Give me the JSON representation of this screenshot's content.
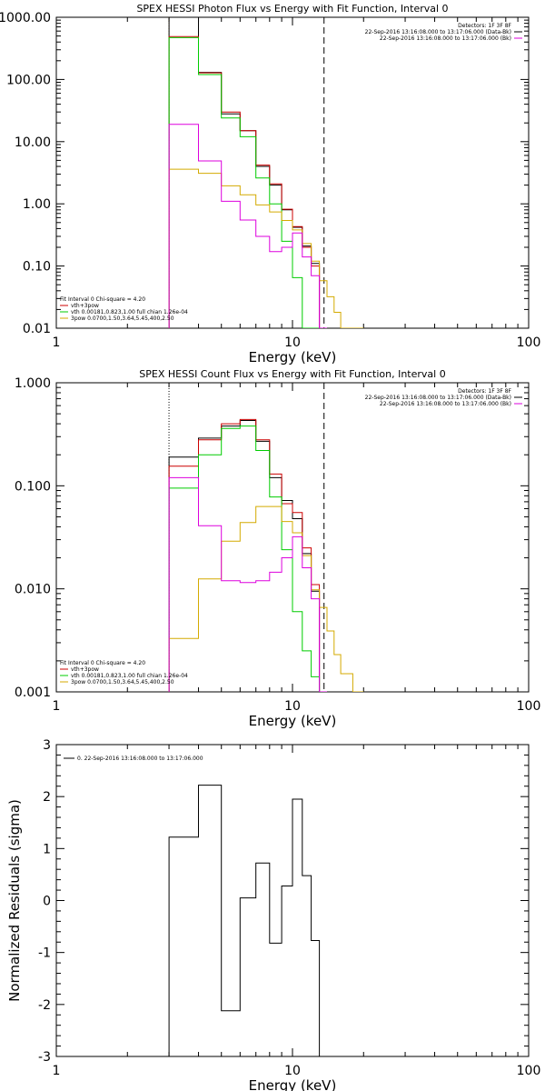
{
  "chart_data": [
    {
      "type": "line",
      "title": "SPEX HESSI Photon Flux vs Energy with Fit Function, Interval 0",
      "xlabel": "Energy (keV)",
      "ylabel": "",
      "xscale": "log",
      "yscale": "log",
      "xlim": [
        1,
        100
      ],
      "ylim": [
        0.01,
        1000
      ],
      "x_ticks": [
        1,
        10,
        100
      ],
      "x_tick_labels": [
        "1",
        "10",
        "100"
      ],
      "y_ticks": [
        0.01,
        0.1,
        1,
        10,
        100,
        1000
      ],
      "y_tick_labels": [
        "0.01",
        "0.10",
        "1.00",
        "10.00",
        "100.00",
        "1000.00"
      ],
      "grid": false,
      "legend_top_right": [
        "Detectors: 1F 3F 8F",
        "22-Sep-2016 13:16:08.000 to 13:17:06.000 (Data-Bk)",
        "22-Sep-2016 13:16:08.000 to 13:17:06.000 (Bk)"
      ],
      "legend_top_right_colors": [
        "#000000",
        "#000000",
        "#dd00dd"
      ],
      "legend_bottom_left": [
        "Fit Interval 0   Chi-square = 4.20",
        "vth+3pow",
        "vth 0.00181,0.823,1.00  full chian 1.26e-04",
        "3pow 0.0700,1.50,3.64,5.45,400,2.50"
      ],
      "legend_bottom_left_colors": [
        "#000000",
        "#cc0000",
        "#00cc00",
        "#d4aa00"
      ],
      "vertical_lines": [
        {
          "x": 3.0,
          "style": "dotted",
          "color": "#d4aa00"
        },
        {
          "x": 13.6,
          "style": "dashed",
          "color": "#000000"
        }
      ],
      "edges": [
        3.0,
        4.0,
        5.0,
        6.0,
        7.0,
        8.0,
        9.0,
        10.0,
        11.0,
        12.0,
        13.0,
        14.0,
        15.0,
        16.0,
        18.0,
        20.0
      ],
      "series": [
        {
          "name": "Data-Bk",
          "color": "#000000",
          "values": [
            1000,
            130,
            28,
            15,
            4.0,
            2.0,
            0.8,
            0.42,
            0.21,
            0.11,
            null,
            null,
            null,
            null,
            null
          ]
        },
        {
          "name": "vth+3pow",
          "color": "#cc0000",
          "values": [
            490,
            128,
            30,
            15,
            4.2,
            2.1,
            0.82,
            0.43,
            0.2,
            0.1,
            null,
            null,
            null,
            null,
            null
          ]
        },
        {
          "name": "vth",
          "color": "#00cc00",
          "values": [
            470,
            120,
            24,
            12,
            2.6,
            1.0,
            0.25,
            0.065,
            0.01,
            0.001,
            null,
            null,
            null,
            null,
            null
          ]
        },
        {
          "name": "3pow",
          "color": "#d4aa00",
          "values": [
            3.6,
            3.1,
            1.95,
            1.4,
            0.96,
            0.74,
            0.54,
            0.38,
            0.23,
            0.12,
            0.058,
            0.032,
            0.018,
            0.01,
            0.0
          ]
        },
        {
          "name": "Bk",
          "color": "#dd00dd",
          "values": [
            19,
            4.9,
            1.1,
            0.55,
            0.3,
            0.17,
            0.2,
            0.34,
            0.14,
            0.07,
            0.001,
            null,
            null,
            null,
            null
          ]
        }
      ]
    },
    {
      "type": "line",
      "title": "SPEX HESSI Count Flux vs Energy with Fit Function, Interval 0",
      "xlabel": "Energy (keV)",
      "ylabel": "",
      "xscale": "log",
      "yscale": "log",
      "xlim": [
        1,
        100
      ],
      "ylim": [
        0.001,
        1
      ],
      "x_ticks": [
        1,
        10,
        100
      ],
      "x_tick_labels": [
        "1",
        "10",
        "100"
      ],
      "y_ticks": [
        0.001,
        0.01,
        0.1,
        1
      ],
      "y_tick_labels": [
        "0.001",
        "0.010",
        "0.100",
        "1.000"
      ],
      "grid": false,
      "legend_top_right": [
        "Detectors: 1F 3F 8F",
        "22-Sep-2016 13:16:08.000 to 13:17:06.000 (Data-Bk)",
        "22-Sep-2016 13:16:08.000 to 13:17:06.000 (Bk)"
      ],
      "legend_top_right_colors": [
        "#000000",
        "#000000",
        "#dd00dd"
      ],
      "legend_bottom_left": [
        "Fit Interval 0   Chi-square = 4.20",
        "vth+3pow",
        "vth 0.00181,0.823,1.00  full chian 1.26e-04",
        "3pow 0.0700,1.50,3.64,5.45,400,2.50"
      ],
      "legend_bottom_left_colors": [
        "#000000",
        "#cc0000",
        "#00cc00",
        "#d4aa00"
      ],
      "vertical_lines": [
        {
          "x": 3.0,
          "style": "dotted",
          "color": "#000000"
        },
        {
          "x": 13.6,
          "style": "dashed",
          "color": "#000000"
        }
      ],
      "edges": [
        3.0,
        4.0,
        5.0,
        6.0,
        7.0,
        8.0,
        9.0,
        10.0,
        11.0,
        12.0,
        13.0,
        14.0,
        15.0,
        16.0,
        18.0,
        20.0
      ],
      "series": [
        {
          "name": "Data-Bk",
          "color": "#000000",
          "values": [
            0.19,
            0.29,
            0.38,
            0.43,
            0.27,
            0.12,
            0.072,
            0.048,
            0.022,
            0.0095,
            null,
            null,
            null,
            null,
            null
          ]
        },
        {
          "name": "vth+3pow",
          "color": "#cc0000",
          "values": [
            0.155,
            0.28,
            0.4,
            0.44,
            0.28,
            0.13,
            0.067,
            0.055,
            0.025,
            0.011,
            null,
            null,
            null,
            null,
            null
          ]
        },
        {
          "name": "vth",
          "color": "#00cc00",
          "values": [
            0.095,
            0.2,
            0.36,
            0.38,
            0.22,
            0.078,
            0.024,
            0.006,
            0.0025,
            0.0014,
            null,
            null,
            null,
            null,
            null
          ]
        },
        {
          "name": "3pow",
          "color": "#d4aa00",
          "values": [
            0.0033,
            0.0125,
            0.029,
            0.044,
            0.063,
            0.063,
            0.045,
            0.035,
            0.021,
            0.0098,
            0.0066,
            0.0039,
            0.0023,
            0.0015,
            0.001
          ]
        },
        {
          "name": "Bk",
          "color": "#dd00dd",
          "values": [
            0.12,
            0.041,
            0.012,
            0.0115,
            0.012,
            0.0145,
            0.02,
            0.032,
            0.016,
            0.008,
            0.001,
            null,
            null,
            null,
            null
          ]
        }
      ]
    },
    {
      "type": "line",
      "title": "",
      "xlabel": "Energy (keV)",
      "ylabel": "Normalized Residuals (sigma)",
      "xscale": "log",
      "yscale": "linear",
      "xlim": [
        1,
        100
      ],
      "ylim": [
        -3,
        3
      ],
      "x_ticks": [
        1,
        10,
        100
      ],
      "x_tick_labels": [
        "1",
        "10",
        "100"
      ],
      "y_ticks": [
        -3,
        -2,
        -1,
        0,
        1,
        2,
        3
      ],
      "y_tick_labels": [
        "-3",
        "-2",
        "-1",
        "0",
        "1",
        "2",
        "3"
      ],
      "grid": false,
      "legend_top_left": [
        "0. 22-Sep-2016 13:16:08.000 to 13:17:06.000"
      ],
      "legend_top_left_colors": [
        "#000000"
      ],
      "edges": [
        3.0,
        4.0,
        5.0,
        6.0,
        7.0,
        8.0,
        9.0,
        10.0,
        11.0,
        12.0,
        13.0,
        14.0
      ],
      "series": [
        {
          "name": "",
          "color": "#000000",
          "values": [
            1.22,
            2.22,
            -2.12,
            0.05,
            0.72,
            -0.82,
            0.28,
            1.95,
            0.48,
            -0.77
          ]
        }
      ]
    }
  ]
}
